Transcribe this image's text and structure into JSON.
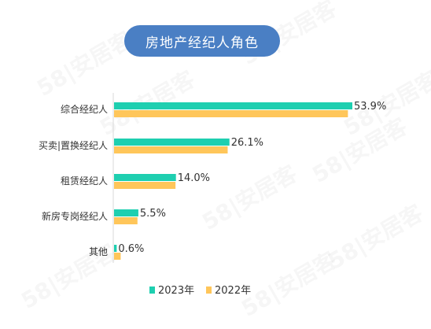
{
  "title": "房地产经纪人角色",
  "watermark": "58|安居客",
  "colors": {
    "series_2023": "#1ecfb0",
    "series_2022": "#ffc65a",
    "title_bg": "#4a7fc4"
  },
  "chart_data": {
    "type": "bar",
    "orientation": "horizontal",
    "categories": [
      "综合经纪人",
      "买卖|置换经纪人",
      "租赁经纪人",
      "新房专岗经纪人",
      "其他"
    ],
    "series": [
      {
        "name": "2023年",
        "values": [
          53.9,
          26.1,
          14.0,
          5.5,
          0.6
        ]
      },
      {
        "name": "2022年",
        "values": [
          52.9,
          25.7,
          13.9,
          5.3,
          1.5
        ]
      }
    ],
    "data_labels": [
      "53.9%",
      "26.1%",
      "14.0%",
      "5.5%",
      "0.6%"
    ],
    "legend_position": "bottom",
    "xlim": [
      0,
      55
    ]
  }
}
